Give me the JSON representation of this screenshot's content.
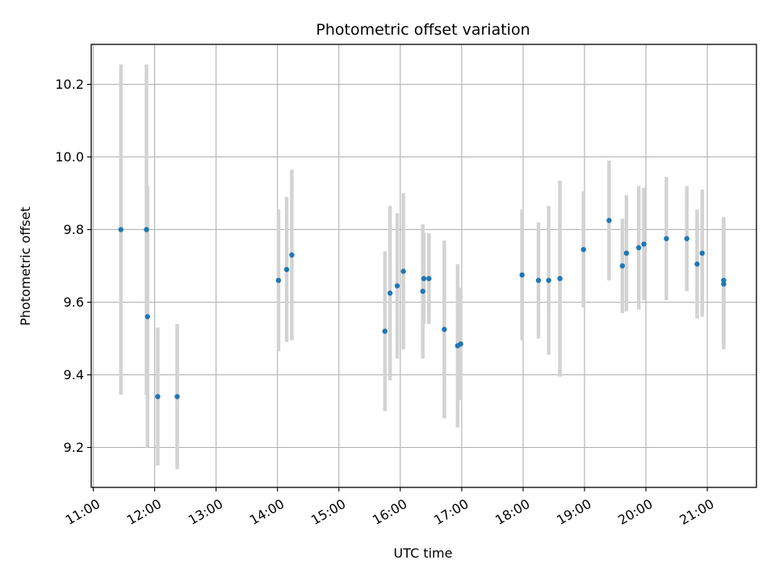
{
  "chart_data": {
    "type": "scatter",
    "title": "Photometric offset variation",
    "xlabel": "UTC time",
    "ylabel": "Photometric offset",
    "x_tick_labels": [
      "11:00",
      "12:00",
      "13:00",
      "14:00",
      "15:00",
      "16:00",
      "17:00",
      "18:00",
      "19:00",
      "20:00",
      "21:00"
    ],
    "x_ticks": [
      "11:00",
      "12:00",
      "13:00",
      "14:00",
      "15:00",
      "16:00",
      "17:00",
      "18:00",
      "19:00",
      "20:00",
      "21:00"
    ],
    "y_ticks": [
      9.2,
      9.4,
      9.6,
      9.8,
      10.0,
      10.2
    ],
    "y_tick_labels": [
      "9.2",
      "9.4",
      "9.6",
      "9.8",
      "10.0",
      "10.2"
    ],
    "xlim": [
      "10:58",
      "21:48"
    ],
    "ylim": [
      9.09,
      10.31
    ],
    "grid": true,
    "colors": {
      "point": "#1f77b4",
      "errorbar": "#d3d3d3",
      "grid": "#b0b0b0"
    },
    "series": [
      {
        "x": [
          "11:27",
          "11:52",
          "11:53",
          "12:03",
          "12:22",
          "14:01",
          "14:09",
          "14:14",
          "15:45",
          "15:50",
          "15:57",
          "16:03",
          "16:22",
          "16:23",
          "16:28",
          "16:43",
          "16:56",
          "16:59",
          "17:59",
          "18:15",
          "18:25",
          "18:36",
          "18:59",
          "19:24",
          "19:37",
          "19:41",
          "19:53",
          "19:58",
          "20:20",
          "20:40",
          "20:50",
          "20:55",
          "21:16",
          "21:16"
        ],
        "y": [
          9.8,
          9.8,
          9.56,
          9.34,
          9.34,
          9.66,
          9.69,
          9.73,
          9.52,
          9.625,
          9.645,
          9.685,
          9.63,
          9.665,
          9.665,
          9.525,
          9.48,
          9.485,
          9.675,
          9.66,
          9.66,
          9.665,
          9.745,
          9.825,
          9.7,
          9.735,
          9.75,
          9.76,
          9.775,
          9.775,
          9.705,
          9.735,
          9.65,
          9.66
        ],
        "yerr": [
          0.455,
          0.455,
          0.36,
          0.19,
          0.2,
          0.195,
          0.2,
          0.235,
          0.22,
          0.24,
          0.2,
          0.215,
          0.185,
          0.125,
          0.125,
          0.245,
          0.225,
          0.155,
          0.18,
          0.16,
          0.205,
          0.27,
          0.16,
          0.165,
          0.13,
          0.16,
          0.17,
          0.155,
          0.17,
          0.145,
          0.15,
          0.175,
          0.18,
          0.175
        ]
      }
    ]
  }
}
